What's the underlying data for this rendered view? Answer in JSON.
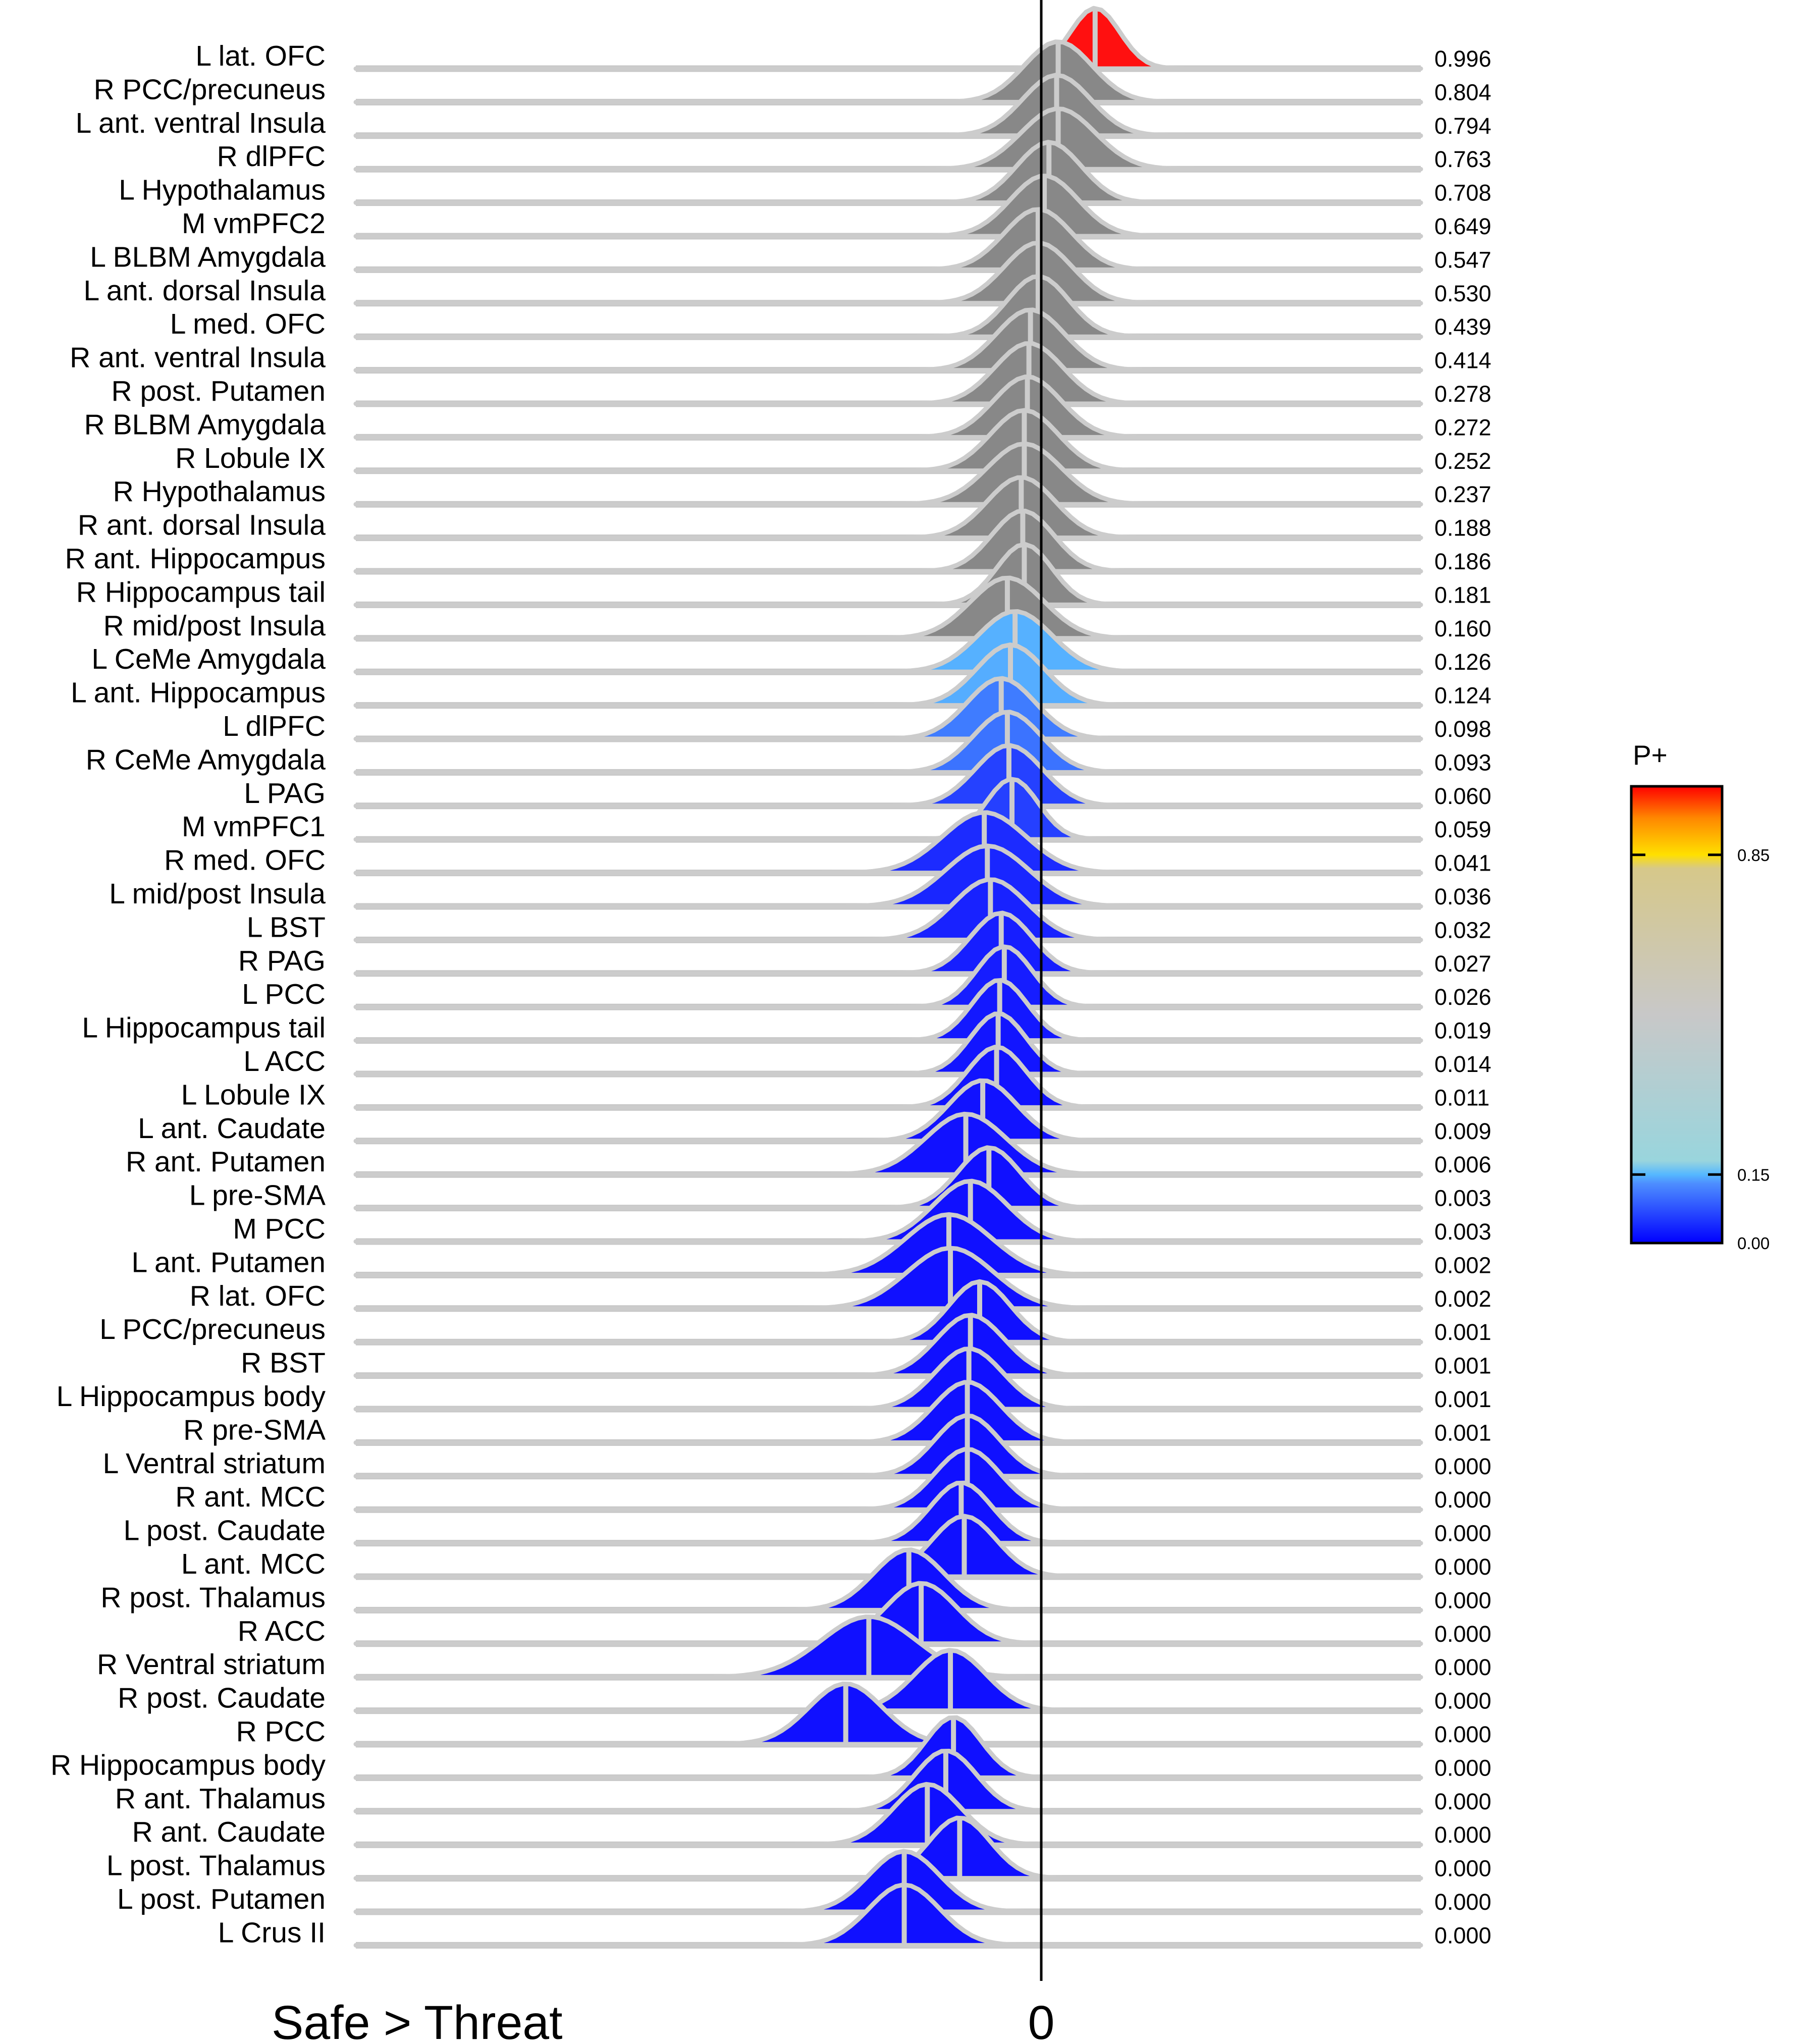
{
  "chart_data": {
    "type": "ridgeline",
    "xlabel": "Safe > Threat",
    "zero_label": "0",
    "legend": {
      "title": "P+",
      "ticks": [
        "0.85",
        "0.15",
        "0.00"
      ],
      "tick_values": [
        0.85,
        0.15,
        0.0
      ],
      "placement": "right",
      "colors": {
        "low": "#0000ff",
        "low_mid": "#55b8ff",
        "mid": "#a8d6d6",
        "gray": "#c8c8c8",
        "tan": "#d6c88a",
        "yellow": "#ffe000",
        "orange": "#ff8800",
        "red": "#ff0000"
      }
    },
    "colors": {
      "red": "#ff1010",
      "gray": "#888888",
      "ridge_stroke": "#cccccc",
      "baseline": "#c7c7c7"
    },
    "series": [
      {
        "name": "L lat. OFC",
        "p": "0.996",
        "mean": 0.35,
        "sd": 0.16
      },
      {
        "name": "R PCC/precuneus",
        "p": "0.804",
        "mean": 0.11,
        "sd": 0.22
      },
      {
        "name": "L ant. ventral Insula",
        "p": "0.794",
        "mean": 0.1,
        "sd": 0.22
      },
      {
        "name": "R dlPFC",
        "p": "0.763",
        "mean": 0.11,
        "sd": 0.24
      },
      {
        "name": "L Hypothalamus",
        "p": "0.708",
        "mean": 0.05,
        "sd": 0.21
      },
      {
        "name": "M vmPFC2",
        "p": "0.649",
        "mean": 0.02,
        "sd": 0.22
      },
      {
        "name": "L BLBM Amygdala",
        "p": "0.547",
        "mean": -0.02,
        "sd": 0.22
      },
      {
        "name": "L ant. dorsal Insula",
        "p": "0.530",
        "mean": -0.02,
        "sd": 0.22
      },
      {
        "name": "L med. OFC",
        "p": "0.439",
        "mean": -0.02,
        "sd": 0.2
      },
      {
        "name": "R ant. ventral Insula",
        "p": "0.414",
        "mean": -0.07,
        "sd": 0.22
      },
      {
        "name": "R post. Putamen",
        "p": "0.278",
        "mean": -0.08,
        "sd": 0.22
      },
      {
        "name": "R BLBM Amygdala",
        "p": "0.272",
        "mean": -0.09,
        "sd": 0.22
      },
      {
        "name": "R Lobule IX",
        "p": "0.252",
        "mean": -0.11,
        "sd": 0.22
      },
      {
        "name": "R Hypothalamus",
        "p": "0.237",
        "mean": -0.11,
        "sd": 0.24
      },
      {
        "name": "R ant. dorsal Insula",
        "p": "0.188",
        "mean": -0.13,
        "sd": 0.22
      },
      {
        "name": "R ant. Hippocampus",
        "p": "0.186",
        "mean": -0.12,
        "sd": 0.2
      },
      {
        "name": "R Hippocampus tail",
        "p": "0.181",
        "mean": -0.11,
        "sd": 0.18
      },
      {
        "name": "R mid/post Insula",
        "p": "0.160",
        "mean": -0.22,
        "sd": 0.24
      },
      {
        "name": "L CeMe Amygdala",
        "p": "0.126",
        "mean": -0.17,
        "sd": 0.24
      },
      {
        "name": "L ant. Hippocampus",
        "p": "0.124",
        "mean": -0.2,
        "sd": 0.22
      },
      {
        "name": "L dlPFC",
        "p": "0.098",
        "mean": -0.26,
        "sd": 0.22
      },
      {
        "name": "R CeMe Amygdala",
        "p": "0.093",
        "mean": -0.22,
        "sd": 0.22
      },
      {
        "name": "L PAG",
        "p": "0.060",
        "mean": -0.21,
        "sd": 0.22
      },
      {
        "name": "M vmPFC1",
        "p": "0.059",
        "mean": -0.19,
        "sd": 0.17
      },
      {
        "name": "R med. OFC",
        "p": "0.041",
        "mean": -0.37,
        "sd": 0.27
      },
      {
        "name": "L mid/post Insula",
        "p": "0.036",
        "mean": -0.35,
        "sd": 0.27
      },
      {
        "name": "L BST",
        "p": "0.032",
        "mean": -0.33,
        "sd": 0.24
      },
      {
        "name": "R PAG",
        "p": "0.027",
        "mean": -0.26,
        "sd": 0.2
      },
      {
        "name": "L PCC",
        "p": "0.026",
        "mean": -0.24,
        "sd": 0.18
      },
      {
        "name": "L Hippocampus tail",
        "p": "0.019",
        "mean": -0.27,
        "sd": 0.18
      },
      {
        "name": "L ACC",
        "p": "0.014",
        "mean": -0.28,
        "sd": 0.18
      },
      {
        "name": "L Lobule IX",
        "p": "0.011",
        "mean": -0.29,
        "sd": 0.19
      },
      {
        "name": "L ant. Caudate",
        "p": "0.009",
        "mean": -0.38,
        "sd": 0.22
      },
      {
        "name": "R ant. Putamen",
        "p": "0.006",
        "mean": -0.49,
        "sd": 0.26
      },
      {
        "name": "L pre-SMA",
        "p": "0.003",
        "mean": -0.34,
        "sd": 0.2
      },
      {
        "name": "M PCC",
        "p": "0.003",
        "mean": -0.46,
        "sd": 0.24
      },
      {
        "name": "L ant. Putamen",
        "p": "0.002",
        "mean": -0.6,
        "sd": 0.28
      },
      {
        "name": "R lat. OFC",
        "p": "0.002",
        "mean": -0.59,
        "sd": 0.28
      },
      {
        "name": "L PCC/precuneus",
        "p": "0.001",
        "mean": -0.4,
        "sd": 0.2
      },
      {
        "name": "R BST",
        "p": "0.001",
        "mean": -0.46,
        "sd": 0.22
      },
      {
        "name": "L Hippocampus body",
        "p": "0.001",
        "mean": -0.47,
        "sd": 0.22
      },
      {
        "name": "R pre-SMA",
        "p": "0.001",
        "mean": -0.48,
        "sd": 0.22
      },
      {
        "name": "L Ventral striatum",
        "p": "0.000",
        "mean": -0.48,
        "sd": 0.21
      },
      {
        "name": "R ant. MCC",
        "p": "0.000",
        "mean": -0.48,
        "sd": 0.21
      },
      {
        "name": "L post. Caudate",
        "p": "0.000",
        "mean": -0.52,
        "sd": 0.2
      },
      {
        "name": "L ant. MCC",
        "p": "0.000",
        "mean": -0.5,
        "sd": 0.21
      },
      {
        "name": "R post. Thalamus",
        "p": "0.000",
        "mean": -0.86,
        "sd": 0.23
      },
      {
        "name": "R ACC",
        "p": "0.000",
        "mean": -0.78,
        "sd": 0.23
      },
      {
        "name": "R Ventral striatum",
        "p": "0.000",
        "mean": -1.12,
        "sd": 0.31
      },
      {
        "name": "R post. Caudate",
        "p": "0.000",
        "mean": -0.59,
        "sd": 0.23
      },
      {
        "name": "R PCC",
        "p": "0.000",
        "mean": -1.27,
        "sd": 0.24
      },
      {
        "name": "R Hippocampus body",
        "p": "0.000",
        "mean": -0.57,
        "sd": 0.18
      },
      {
        "name": "R ant. Thalamus",
        "p": "0.000",
        "mean": -0.62,
        "sd": 0.2
      },
      {
        "name": "R ant. Caudate",
        "p": "0.000",
        "mean": -0.74,
        "sd": 0.22
      },
      {
        "name": "L post. Thalamus",
        "p": "0.000",
        "mean": -0.53,
        "sd": 0.2
      },
      {
        "name": "L post. Putamen",
        "p": "0.000",
        "mean": -0.89,
        "sd": 0.23
      },
      {
        "name": "L Crus II",
        "p": "0.000",
        "mean": -0.89,
        "sd": 0.23
      }
    ]
  }
}
